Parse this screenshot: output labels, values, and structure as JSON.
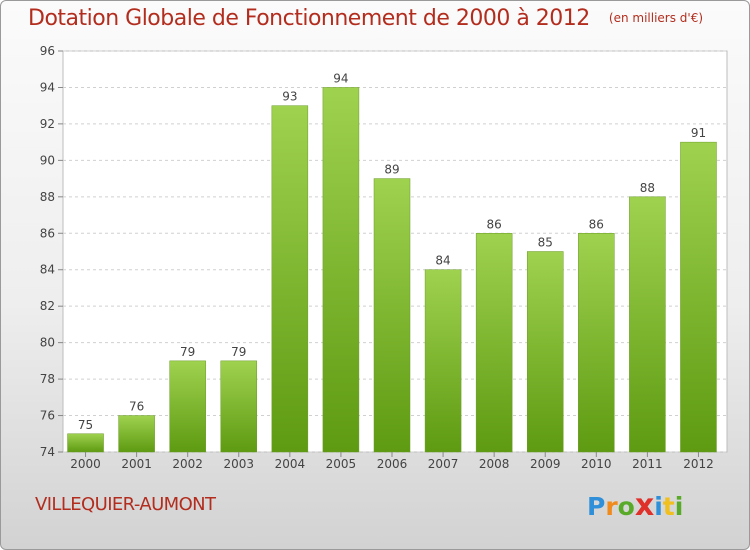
{
  "chart_data": {
    "type": "bar",
    "title": "Dotation Globale de Fonctionnement de 2000 à 2012",
    "subtitle": "(en milliers d'€)",
    "categories": [
      "2000",
      "2001",
      "2002",
      "2003",
      "2004",
      "2005",
      "2006",
      "2007",
      "2008",
      "2009",
      "2010",
      "2011",
      "2012"
    ],
    "values": [
      75,
      76,
      79,
      79,
      93,
      94,
      89,
      84,
      86,
      85,
      86,
      88,
      91
    ],
    "ylim": [
      74,
      96
    ],
    "yticks": [
      74,
      76,
      78,
      80,
      82,
      84,
      86,
      88,
      90,
      92,
      94,
      96
    ],
    "grid": true,
    "bar_color_top": "#9fd24f",
    "bar_color_bottom": "#5e9a12",
    "title_color": "#b32d1e"
  },
  "footer": {
    "town": "VILLEQUIER-AUMONT",
    "logo_letters": [
      "P",
      "r",
      "o",
      "x",
      "i",
      "t",
      "i"
    ],
    "logo_colors": [
      "#2f8fd8",
      "#f08a1c",
      "#5aaa2a",
      "#e0302a",
      "#2f8fd8",
      "#f0c020",
      "#5aaa2a"
    ]
  }
}
